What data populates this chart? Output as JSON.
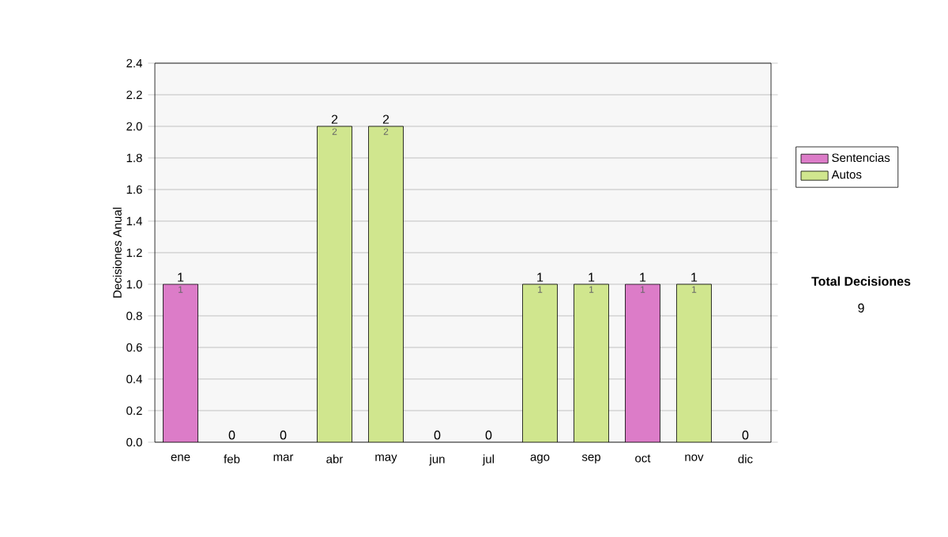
{
  "chart_data": {
    "type": "bar",
    "stacked": true,
    "ylabel": "Decisiones Anual",
    "categories": [
      "ene",
      "feb",
      "mar",
      "abr",
      "may",
      "jun",
      "jul",
      "ago",
      "sep",
      "oct",
      "nov",
      "dic"
    ],
    "series": [
      {
        "name": "Sentencias",
        "color": "#dc7cc8",
        "values": [
          1,
          0,
          0,
          0,
          0,
          0,
          0,
          0,
          0,
          1,
          0,
          0
        ],
        "value_labels": [
          "1",
          null,
          null,
          null,
          null,
          null,
          null,
          null,
          null,
          "1",
          null,
          null
        ]
      },
      {
        "name": "Autos",
        "color": "#d0e68e",
        "values": [
          0,
          0,
          0,
          2,
          2,
          0,
          0,
          1,
          1,
          0,
          1,
          0
        ],
        "value_labels": [
          null,
          null,
          null,
          "2",
          "2",
          null,
          null,
          "1",
          "1",
          null,
          "1",
          null
        ]
      }
    ],
    "totals": [
      "1",
      "0",
      "0",
      "2",
      "2",
      "0",
      "0",
      "1",
      "1",
      "1",
      "1",
      "0"
    ],
    "ylim": [
      0,
      2.4
    ],
    "yticks": [
      {
        "value": 0,
        "label": "0.0"
      },
      0.2,
      0.4,
      0.6,
      0.8,
      {
        "value": 1,
        "label": "1.0"
      },
      1.2,
      1.4,
      1.6,
      1.8,
      {
        "value": 2,
        "label": "2.0"
      },
      2.2,
      2.4
    ],
    "grid": "y",
    "legend": "right",
    "annotations": [
      "Total Decisiones",
      "9"
    ]
  }
}
